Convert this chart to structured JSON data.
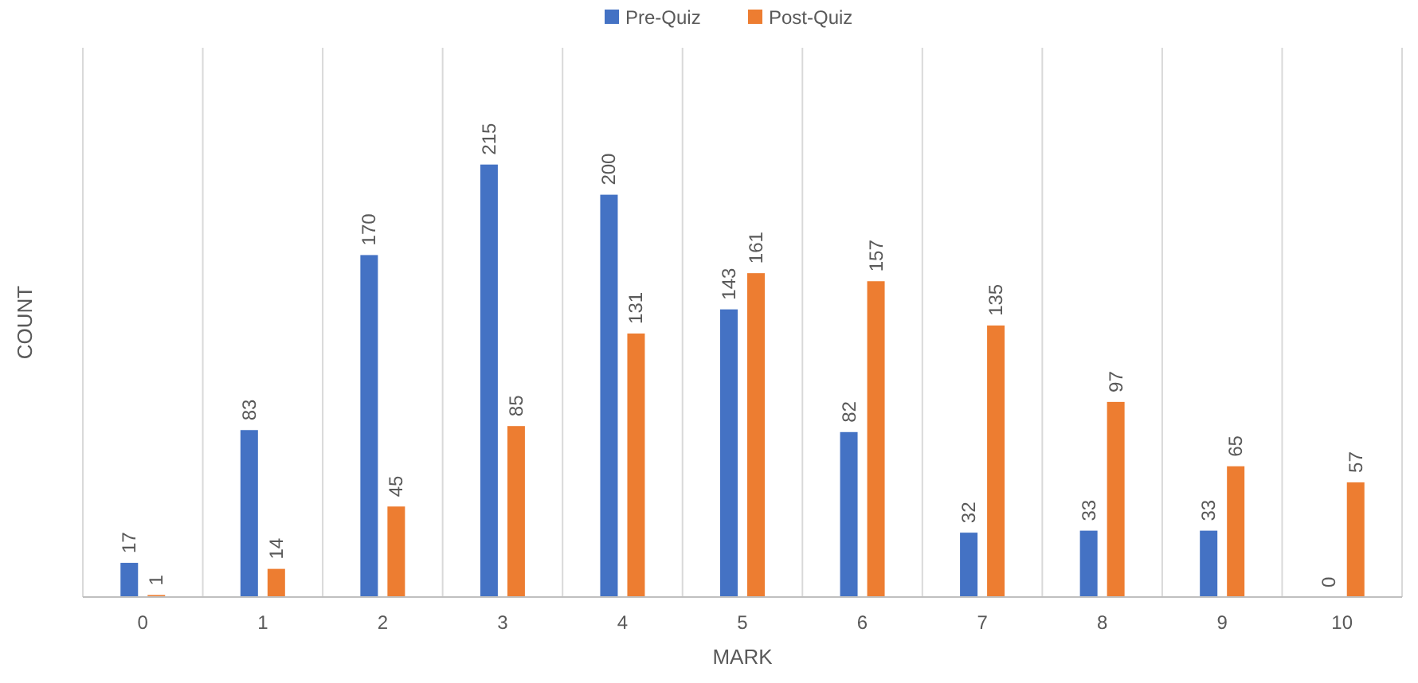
{
  "chart_data": {
    "type": "bar",
    "xlabel": "MARK",
    "ylabel": "COUNT",
    "categories": [
      "0",
      "1",
      "2",
      "3",
      "4",
      "5",
      "6",
      "7",
      "8",
      "9",
      "10"
    ],
    "series": [
      {
        "name": "Pre-Quiz",
        "color": "#4472c4",
        "values": [
          17,
          83,
          170,
          215,
          200,
          143,
          82,
          32,
          33,
          33,
          0
        ]
      },
      {
        "name": "Post-Quiz",
        "color": "#ed7d31",
        "values": [
          1,
          14,
          45,
          85,
          131,
          161,
          157,
          135,
          97,
          65,
          57
        ]
      }
    ],
    "data_labels": true,
    "grid": "x",
    "legend": "top"
  }
}
